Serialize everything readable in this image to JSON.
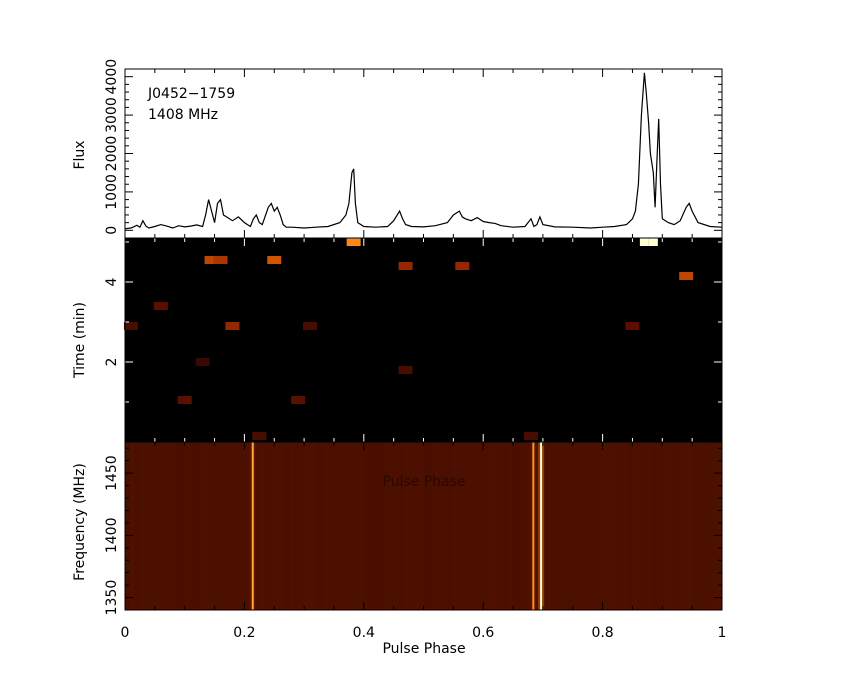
{
  "chart_data": [
    {
      "panel": "profile",
      "type": "line",
      "ylabel": "Flux",
      "annotations": [
        "J0452−1759",
        "1408 MHz"
      ],
      "xlim": [
        0,
        1
      ],
      "ylim": [
        -200,
        4200
      ],
      "yticks": [
        "0",
        "1000",
        "2000",
        "3000",
        "4000"
      ],
      "x": [
        0,
        0.01,
        0.02,
        0.025,
        0.03,
        0.035,
        0.04,
        0.05,
        0.06,
        0.07,
        0.08,
        0.09,
        0.1,
        0.11,
        0.12,
        0.13,
        0.135,
        0.14,
        0.145,
        0.15,
        0.155,
        0.16,
        0.165,
        0.17,
        0.18,
        0.19,
        0.2,
        0.21,
        0.215,
        0.22,
        0.225,
        0.23,
        0.24,
        0.245,
        0.25,
        0.255,
        0.26,
        0.265,
        0.27,
        0.28,
        0.3,
        0.32,
        0.34,
        0.36,
        0.37,
        0.375,
        0.38,
        0.383,
        0.386,
        0.39,
        0.4,
        0.42,
        0.44,
        0.45,
        0.46,
        0.465,
        0.47,
        0.48,
        0.5,
        0.52,
        0.54,
        0.55,
        0.56,
        0.565,
        0.57,
        0.58,
        0.59,
        0.6,
        0.61,
        0.62,
        0.63,
        0.65,
        0.67,
        0.68,
        0.685,
        0.69,
        0.695,
        0.7,
        0.72,
        0.75,
        0.78,
        0.8,
        0.82,
        0.84,
        0.85,
        0.855,
        0.86,
        0.865,
        0.87,
        0.873,
        0.877,
        0.88,
        0.885,
        0.888,
        0.891,
        0.894,
        0.897,
        0.9,
        0.91,
        0.92,
        0.93,
        0.94,
        0.945,
        0.95,
        0.96,
        0.98,
        1.0
      ],
      "values": [
        40,
        60,
        130,
        80,
        250,
        110,
        60,
        100,
        150,
        110,
        60,
        120,
        90,
        110,
        140,
        100,
        400,
        800,
        500,
        200,
        700,
        800,
        400,
        350,
        250,
        350,
        200,
        100,
        300,
        400,
        200,
        150,
        600,
        700,
        500,
        600,
        400,
        150,
        80,
        80,
        60,
        80,
        100,
        200,
        400,
        700,
        1500,
        1600,
        700,
        200,
        100,
        80,
        100,
        250,
        500,
        300,
        150,
        100,
        90,
        120,
        200,
        400,
        500,
        350,
        300,
        250,
        330,
        230,
        200,
        180,
        120,
        80,
        100,
        300,
        100,
        150,
        350,
        150,
        90,
        80,
        60,
        80,
        100,
        150,
        300,
        500,
        1200,
        3000,
        4100,
        3600,
        2800,
        2000,
        1500,
        600,
        1800,
        2900,
        1200,
        300,
        200,
        150,
        250,
        600,
        700,
        500,
        200,
        100,
        80
      ]
    },
    {
      "panel": "time-phase",
      "type": "heatmap",
      "ylabel": "Time (min)",
      "xlim": [
        0,
        1
      ],
      "ylim": [
        0,
        5.1
      ],
      "yticks": [
        "2",
        "4"
      ],
      "colormap": [
        "#000000",
        "#7a1400",
        "#ff7700",
        "#ffffd0"
      ],
      "hotspots": [
        {
          "x": 0.383,
          "y": 5.0,
          "intensity": 0.7
        },
        {
          "x": 0.87,
          "y": 5.0,
          "intensity": 1.0
        },
        {
          "x": 0.885,
          "y": 5.0,
          "intensity": 1.0
        },
        {
          "x": 0.145,
          "y": 4.55,
          "intensity": 0.5
        },
        {
          "x": 0.16,
          "y": 4.55,
          "intensity": 0.45
        },
        {
          "x": 0.25,
          "y": 4.55,
          "intensity": 0.55
        },
        {
          "x": 0.47,
          "y": 4.4,
          "intensity": 0.4
        },
        {
          "x": 0.565,
          "y": 4.4,
          "intensity": 0.4
        },
        {
          "x": 0.94,
          "y": 4.15,
          "intensity": 0.5
        },
        {
          "x": 0.06,
          "y": 3.4,
          "intensity": 0.25
        },
        {
          "x": 0.18,
          "y": 2.9,
          "intensity": 0.4
        },
        {
          "x": 0.31,
          "y": 2.9,
          "intensity": 0.2
        },
        {
          "x": 0.85,
          "y": 2.9,
          "intensity": 0.25
        },
        {
          "x": 0.01,
          "y": 2.9,
          "intensity": 0.2
        },
        {
          "x": 0.13,
          "y": 2.0,
          "intensity": 0.15
        },
        {
          "x": 0.47,
          "y": 1.8,
          "intensity": 0.2
        },
        {
          "x": 0.29,
          "y": 1.05,
          "intensity": 0.25
        },
        {
          "x": 0.1,
          "y": 1.05,
          "intensity": 0.25
        },
        {
          "x": 0.68,
          "y": 0.15,
          "intensity": 0.2
        },
        {
          "x": 0.225,
          "y": 0.15,
          "intensity": 0.2
        }
      ]
    },
    {
      "panel": "frequency-phase",
      "type": "heatmap",
      "xlabel": "Pulse Phase",
      "ylabel": "Frequency (MHz)",
      "overlay_text": "Pulse Phase",
      "xlim": [
        0,
        1
      ],
      "ylim": [
        1340,
        1475
      ],
      "xticks": [
        "0",
        "0.2",
        "0.4",
        "0.6",
        "0.8",
        "1"
      ],
      "yticks": [
        "1350",
        "1400",
        "1450"
      ],
      "colormap": [
        "#4a0f00",
        "#5a1400",
        "#ff8800",
        "#ffffd8"
      ],
      "bright_lines": [
        {
          "x": 0.214,
          "intensity": 0.75
        },
        {
          "x": 0.684,
          "intensity": 0.7
        },
        {
          "x": 0.697,
          "intensity": 1.0
        }
      ]
    }
  ]
}
